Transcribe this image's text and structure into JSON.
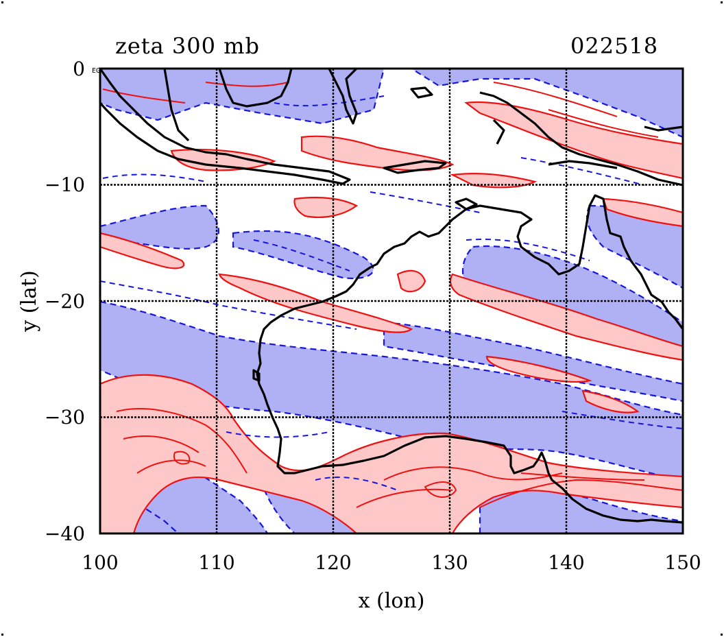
{
  "map": {
    "title_left": "zeta 300 mb",
    "title_right": "022518",
    "xlabel": "x (lon)",
    "ylabel": "y (lat)",
    "corner_label": "EG",
    "x_ticks": [
      "100",
      "110",
      "120",
      "130",
      "140",
      "150"
    ],
    "y_ticks": [
      "0",
      "−10",
      "−20",
      "−30",
      "−40"
    ],
    "lon_range": [
      100,
      150
    ],
    "lat_range": [
      -40,
      0
    ],
    "grid_lons": [
      110,
      120,
      130,
      140
    ],
    "grid_lats": [
      -10,
      -20,
      -30
    ],
    "colors": {
      "positive_fill": "#ffc8c8",
      "positive_contour": "#ee1111",
      "negative_fill": "#b0b0f4",
      "negative_contour": "#1515dd",
      "coastline": "#000000",
      "grid": "#000000"
    }
  }
}
